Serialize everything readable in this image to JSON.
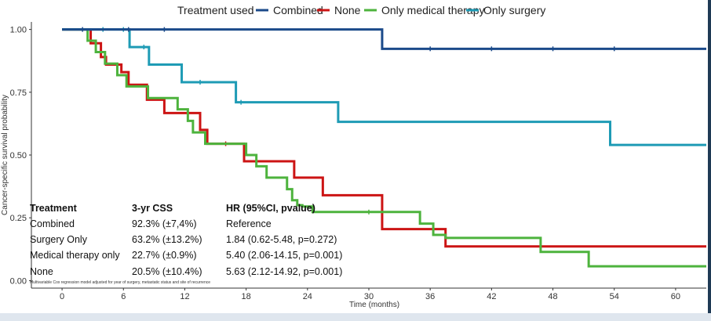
{
  "chart_data": {
    "type": "line",
    "subtype": "kaplan-meier-step",
    "legend": {
      "title": "Treatment used",
      "position": "top",
      "entries": [
        {
          "name": "Combined",
          "color": "#1b4a8a"
        },
        {
          "name": "None",
          "color": "#cc1414"
        },
        {
          "name": "Only medical therapy",
          "color": "#4db33d"
        },
        {
          "name": "Only surgery",
          "color": "#1e9bb5"
        }
      ]
    },
    "xlabel": "Time (months)",
    "ylabel": "Cancer-specific survival probability",
    "xlim": [
      -3,
      63
    ],
    "ylim": [
      -0.03,
      1.03
    ],
    "x_ticks": [
      0,
      6,
      12,
      18,
      24,
      30,
      36,
      42,
      48,
      54,
      60
    ],
    "y_ticks": [
      0.0,
      0.25,
      0.5,
      0.75,
      1.0
    ],
    "y_tick_labels": [
      "0.00",
      "0.25",
      "0.50",
      "0.75",
      "1.00"
    ],
    "grid": false,
    "series": [
      {
        "name": "Combined",
        "color": "#1b4a8a",
        "x": [
          0,
          31.3,
          63
        ],
        "y": [
          1.0,
          0.923,
          0.923
        ],
        "censor_x": [
          2,
          6.5,
          10,
          36,
          42,
          48,
          54
        ]
      },
      {
        "name": "Only surgery",
        "color": "#1e9bb5",
        "x": [
          0,
          6.6,
          8.5,
          11.7,
          17,
          27,
          53.6,
          63
        ],
        "y": [
          1.0,
          0.93,
          0.86,
          0.79,
          0.71,
          0.632,
          0.54,
          0.54
        ],
        "censor_x": [
          4,
          6,
          8,
          13.5,
          17.5
        ]
      },
      {
        "name": "None",
        "color": "#cc1414",
        "x": [
          0,
          2.8,
          3.8,
          4.3,
          5.8,
          6.5,
          8.3,
          10,
          13.5,
          14.2,
          17.8,
          22.7,
          25.5,
          31.3,
          35.5,
          37.5,
          63
        ],
        "y": [
          1.0,
          0.945,
          0.89,
          0.86,
          0.83,
          0.78,
          0.72,
          0.667,
          0.6,
          0.545,
          0.475,
          0.41,
          0.34,
          0.205,
          0.205,
          0.136,
          0.136
        ],
        "censor_x": [
          16
        ]
      },
      {
        "name": "Only medical therapy",
        "color": "#4db33d",
        "x": [
          0,
          2.5,
          3.3,
          4.2,
          5.4,
          6.3,
          8.4,
          11.3,
          12.3,
          12.8,
          14,
          18,
          19,
          20,
          22,
          22.5,
          23,
          23.5,
          24.5,
          35,
          36.3,
          37.5,
          46.8,
          51.5,
          63
        ],
        "y": [
          1.0,
          0.955,
          0.91,
          0.864,
          0.818,
          0.773,
          0.727,
          0.682,
          0.636,
          0.59,
          0.545,
          0.5,
          0.455,
          0.41,
          0.364,
          0.32,
          0.3,
          0.295,
          0.273,
          0.227,
          0.182,
          0.17,
          0.114,
          0.057,
          0.057
        ],
        "censor_x": [
          30
        ]
      }
    ],
    "annotation_table": {
      "headers": [
        "Treatment",
        "3-yr CSS",
        "HR (95%CI, pvalue)"
      ],
      "rows": [
        [
          "Combined",
          "92.3% (±7,4%)",
          "Reference"
        ],
        [
          "Surgery Only",
          "63.2% (±13.2%)",
          "1.84 (0.62-5.48, p=0.272)"
        ],
        [
          "Medical therapy only",
          "22.7% (±0.9%)",
          "5.40 (2.06-14.15, p=0.001)"
        ],
        [
          "None",
          "20.5% (±10.4%)",
          "5.63 (2.12-14.92, p=0.001)"
        ]
      ],
      "footnote": "Multivariable Cox regression model adjusted for year of surgery, metastatic status and site of recurrence"
    }
  }
}
